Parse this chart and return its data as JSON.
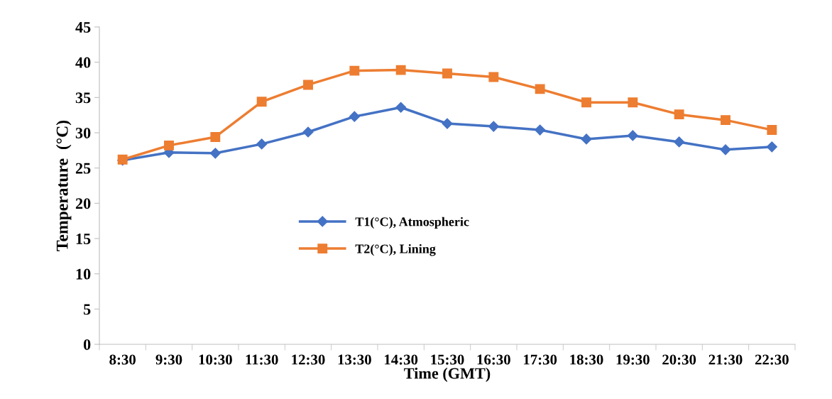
{
  "chart_data": {
    "type": "line",
    "xlabel": "Time (GMT)",
    "ylabel": "Temperature  (°C)",
    "categories": [
      "8:30",
      "9:30",
      "10:30",
      "11:30",
      "12:30",
      "13:30",
      "14:30",
      "15:30",
      "16:30",
      "17:30",
      "18:30",
      "19:30",
      "20:30",
      "21:30",
      "22:30"
    ],
    "series": [
      {
        "name": "T1(°C), Atmospheric",
        "color": "#4472c4",
        "marker": "diamond",
        "values": [
          26.1,
          27.2,
          27.1,
          28.4,
          30.1,
          32.3,
          33.6,
          31.3,
          30.9,
          30.4,
          29.1,
          29.6,
          28.7,
          27.6,
          28.0
        ]
      },
      {
        "name": "T2(°C), Lining",
        "color": "#ed7d31",
        "marker": "square",
        "values": [
          26.2,
          28.2,
          29.4,
          34.4,
          36.8,
          38.8,
          38.9,
          38.4,
          37.9,
          36.2,
          34.3,
          34.3,
          32.6,
          31.8,
          30.4
        ]
      }
    ],
    "ylim": [
      0,
      45
    ],
    "yticks": [
      0,
      5,
      10,
      15,
      20,
      25,
      30,
      35,
      40,
      45
    ],
    "grid": false,
    "legend": "center"
  }
}
